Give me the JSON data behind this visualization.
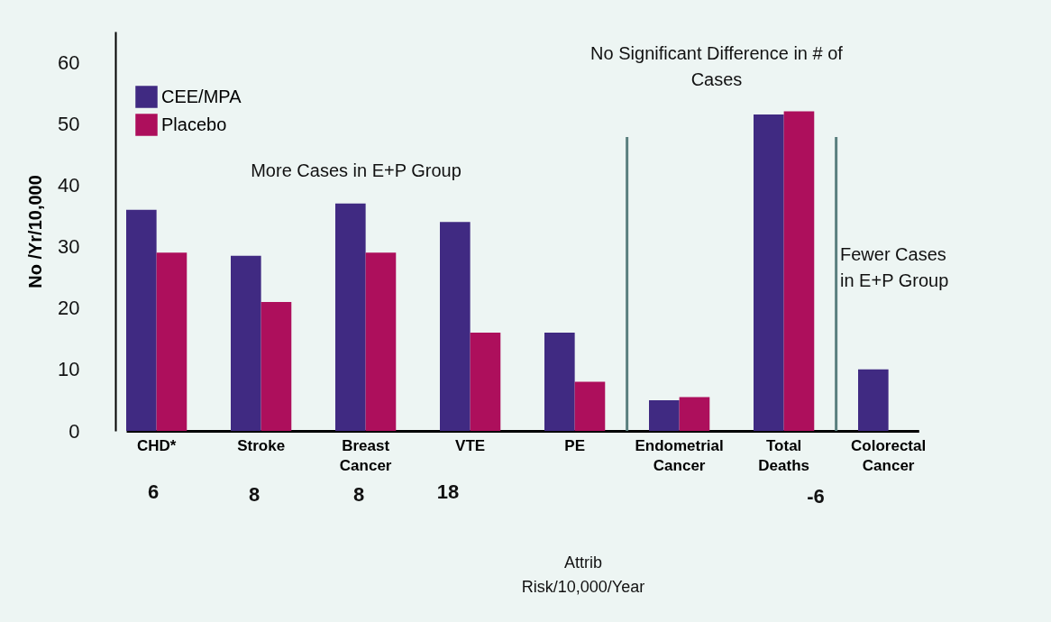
{
  "chart_data": {
    "type": "bar",
    "ylabel": "No /Yr/10,000",
    "categories": [
      "CHD*",
      "Stroke",
      "Breast Cancer",
      "VTE",
      "PE",
      "Endometrial Cancer",
      "Total Deaths",
      "Colorectal Cancer"
    ],
    "series": [
      {
        "name": "CEE/MPA",
        "color": "#402a82",
        "values": [
          36,
          28.5,
          37,
          34,
          16,
          5,
          51.5,
          10
        ]
      },
      {
        "name": "Placebo",
        "color": "#ad0f5c",
        "values": [
          29,
          21,
          29,
          16,
          8,
          5.5,
          52,
          null
        ]
      }
    ],
    "ylim": [
      0,
      65
    ],
    "yticks": [
      0,
      10,
      20,
      30,
      40,
      50,
      60
    ],
    "grid": false,
    "legend": "top left",
    "annotations": [
      "More Cases in E+P Group",
      "No Significant Difference in # of\nCases",
      "Fewer Cases\nin E+P Group",
      "6",
      "8",
      "8",
      "18",
      "-6",
      "Attrib\nRisk/10,000/Year"
    ]
  }
}
